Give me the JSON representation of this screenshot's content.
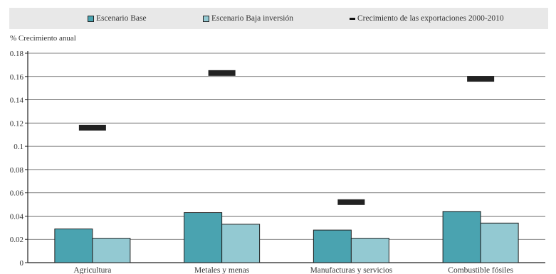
{
  "chart_data": {
    "type": "bar",
    "ylabel": "% Crecimiento anual",
    "ylim": [
      0,
      0.18
    ],
    "yticks": [
      0,
      0.02,
      0.04,
      0.06,
      0.08,
      0.1,
      0.12,
      0.14,
      0.16,
      0.18
    ],
    "ytick_labels": [
      "0",
      "0.02",
      "0.04",
      "0.06",
      "0.08",
      "0.1",
      "0.12",
      "0.14",
      "0.16",
      "0.18"
    ],
    "grid": true,
    "legend_position": "top",
    "categories": [
      "Agricultura",
      "Metales y menas",
      "Manufacturas y servicios",
      "Combustible fósiles"
    ],
    "series": [
      {
        "name": "Escenario Base",
        "kind": "bar",
        "color": "#4aa3b0",
        "values": [
          0.029,
          0.043,
          0.028,
          0.044
        ]
      },
      {
        "name": "Escenario Baja inversión",
        "kind": "bar",
        "color": "#93c9d2",
        "values": [
          0.021,
          0.033,
          0.021,
          0.034
        ]
      },
      {
        "name": "Crecimiento de las exportaciones 2000-2010",
        "kind": "marker",
        "color": "#222222",
        "values": [
          0.116,
          0.163,
          0.052,
          0.158
        ]
      }
    ]
  }
}
